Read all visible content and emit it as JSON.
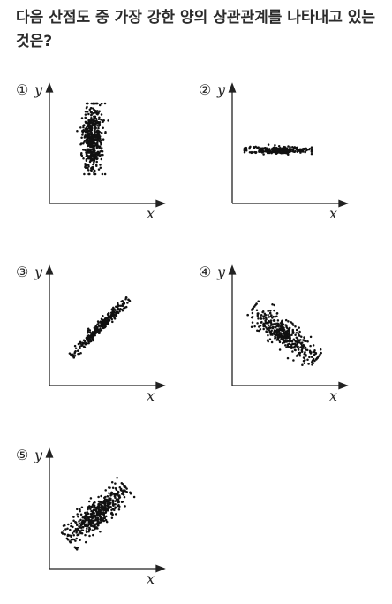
{
  "question": "다음 산점도 중 가장 강한 양의 상관관계를 나타내고 있는 것은?",
  "options": [
    {
      "number": "①",
      "x_label": "x",
      "y_label": "y",
      "pattern": "vertical-cluster"
    },
    {
      "number": "②",
      "x_label": "x",
      "y_label": "y",
      "pattern": "horizontal-cluster"
    },
    {
      "number": "③",
      "x_label": "x",
      "y_label": "y",
      "pattern": "strong-positive"
    },
    {
      "number": "④",
      "x_label": "x",
      "y_label": "y",
      "pattern": "negative"
    },
    {
      "number": "⑤",
      "x_label": "x",
      "y_label": "y",
      "pattern": "weak-positive"
    }
  ]
}
